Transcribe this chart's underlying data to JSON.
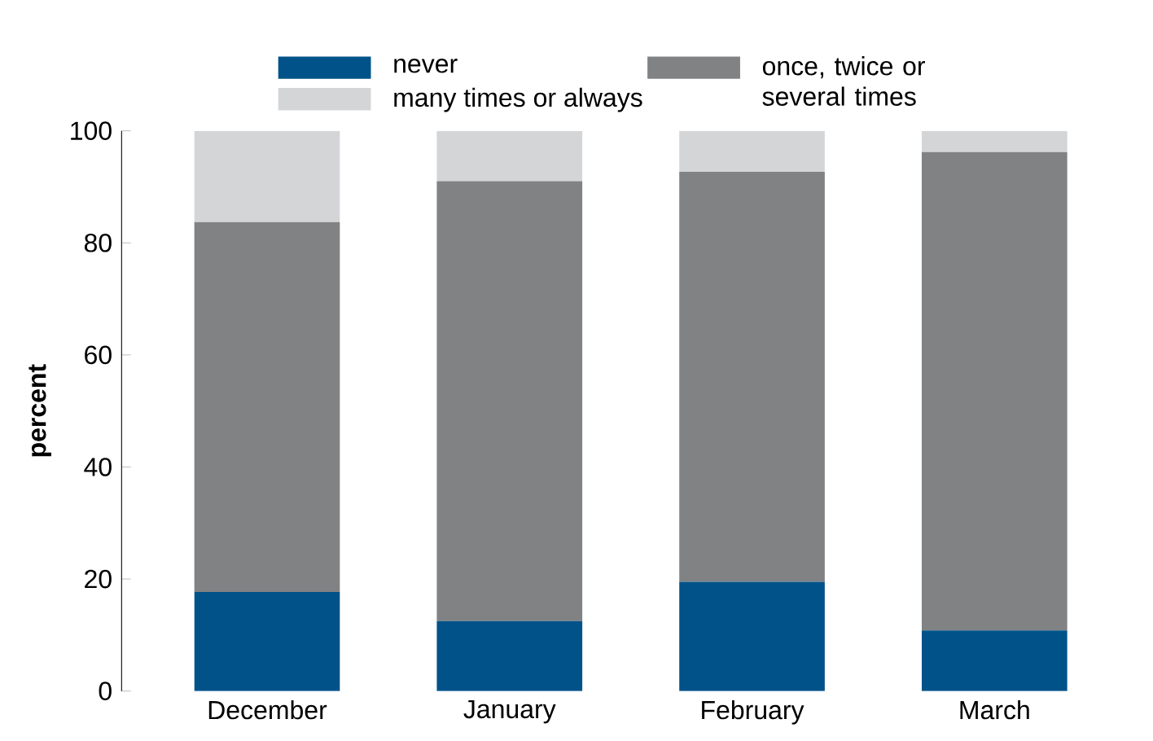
{
  "chart_data": {
    "type": "bar",
    "stacked": true,
    "ylabel": "percent",
    "categories": [
      "December",
      "January",
      "February",
      "March"
    ],
    "series": [
      {
        "name": "never",
        "color": "#005289",
        "values": [
          17.7,
          12.5,
          19.5,
          10.8
        ]
      },
      {
        "name": "once, twice or several times",
        "color": "#808284",
        "values": [
          66.0,
          78.5,
          73.2,
          85.4
        ]
      },
      {
        "name": "many times or always",
        "color": "#d4d5d7",
        "values": [
          16.3,
          9.0,
          7.3,
          3.8
        ]
      }
    ],
    "ylim": [
      0,
      100
    ],
    "yticks": [
      0,
      20,
      40,
      60,
      80,
      100
    ],
    "grid": false,
    "legend": "top"
  }
}
